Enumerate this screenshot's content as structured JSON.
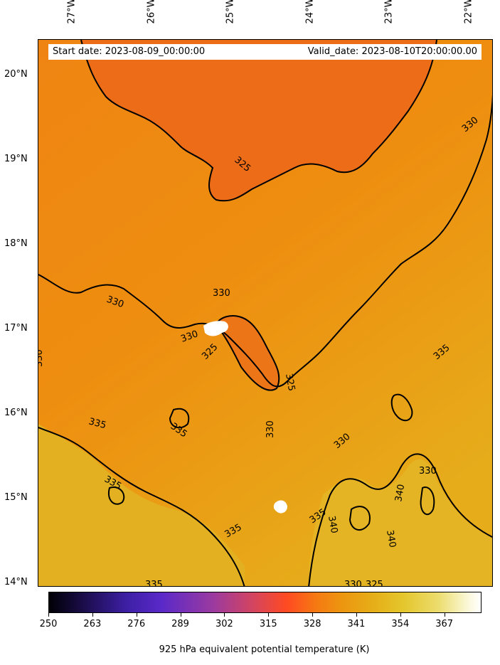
{
  "map": {
    "lon_labels": [
      "27°W",
      "26°W",
      "25°W",
      "24°W",
      "23°W",
      "22°W"
    ],
    "lat_labels": [
      "20°N",
      "19°N",
      "18°N",
      "17°N",
      "16°N",
      "15°N",
      "14°N"
    ],
    "start_date": "Start date: 2023-08-09_00:00:00",
    "valid_date": "Valid_date: 2023-08-10T20:00:00.00",
    "contour_labels": [
      "325",
      "330",
      "335",
      "340"
    ],
    "field_colors": {
      "cool_region": "#ec6b18",
      "mid_region": "#ef8a10",
      "warm_region": "#e6a51a",
      "hot_region": "#e2b622",
      "contour": "#000000",
      "missing": "#ffffff"
    }
  },
  "colorbar": {
    "ticks": [
      "250",
      "263",
      "276",
      "289",
      "302",
      "315",
      "328",
      "341",
      "354",
      "367"
    ],
    "label": "925 hPa equivalent potential temperature (K)"
  }
}
